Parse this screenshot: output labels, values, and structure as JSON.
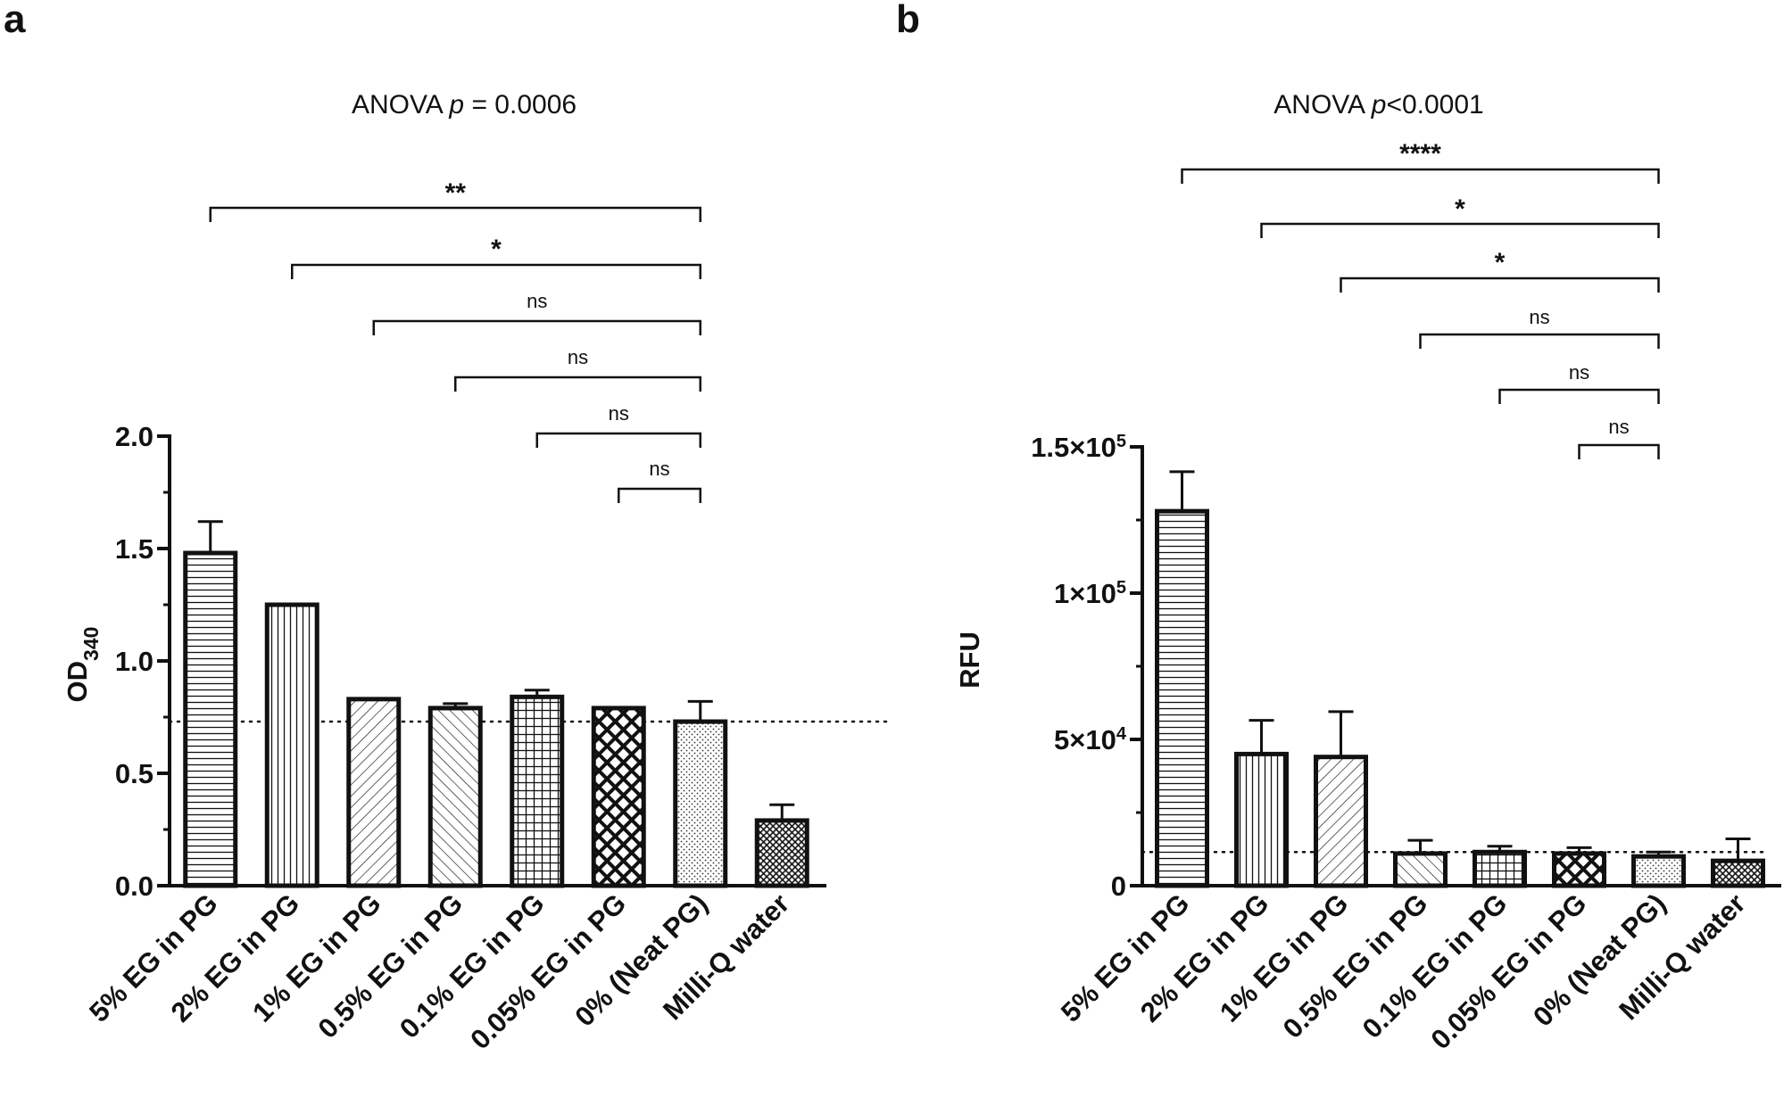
{
  "chart_data": [
    {
      "panel": "a",
      "type": "bar",
      "title": "ANOVA p = 0.0006",
      "title_parts": {
        "prefix": "ANOVA ",
        "p": "p",
        "suffix": " = 0.0006"
      },
      "ylabel": "OD340",
      "ylabel_parts": {
        "main": "OD",
        "sub": "340"
      },
      "xlabel": "",
      "ylim": [
        0,
        2.0
      ],
      "yticks": [
        {
          "value": 0.0,
          "label": "0.0"
        },
        {
          "value": 0.5,
          "label": "0.5"
        },
        {
          "value": 1.0,
          "label": "1.0"
        },
        {
          "value": 1.5,
          "label": "1.5"
        },
        {
          "value": 2.0,
          "label": "2.0"
        }
      ],
      "categories": [
        "5% EG in PG",
        "2% EG in PG",
        "1% EG in PG",
        "0.5% EG in PG",
        "0.1% EG in PG",
        "0.05% EG in PG",
        "0% (Neat PG)",
        "Milli-Q water"
      ],
      "values": [
        1.48,
        1.25,
        0.83,
        0.79,
        0.84,
        0.79,
        0.73,
        0.29
      ],
      "errors": [
        0.14,
        0.0,
        0.0,
        0.02,
        0.03,
        0.0,
        0.09,
        0.07
      ],
      "patterns": [
        "hlines",
        "vlines",
        "diag-right",
        "diag-left",
        "grid",
        "diamond",
        "dots",
        "crosshatch"
      ],
      "reference_line": 0.73,
      "comparisons": [
        {
          "from": "5% EG in PG",
          "to": "0% (Neat PG)",
          "label": "**"
        },
        {
          "from": "2% EG in PG",
          "to": "0% (Neat PG)",
          "label": "*"
        },
        {
          "from": "1% EG in PG",
          "to": "0% (Neat PG)",
          "label": "ns"
        },
        {
          "from": "0.5% EG in PG",
          "to": "0% (Neat PG)",
          "label": "ns"
        },
        {
          "from": "0.1% EG in PG",
          "to": "0% (Neat PG)",
          "label": "ns"
        },
        {
          "from": "0.05% EG in PG",
          "to": "0% (Neat PG)",
          "label": "ns"
        }
      ]
    },
    {
      "panel": "b",
      "type": "bar",
      "title": "ANOVA p<0.0001",
      "title_parts": {
        "prefix": "ANOVA ",
        "p": "p",
        "suffix": "<0.0001"
      },
      "ylabel": "RFU",
      "xlabel": "",
      "ylim": [
        0,
        150000
      ],
      "yticks": [
        {
          "value": 0,
          "label": "0"
        },
        {
          "value": 50000,
          "label": "5×10",
          "exp": "4"
        },
        {
          "value": 100000,
          "label": "1×10",
          "exp": "5"
        },
        {
          "value": 150000,
          "label": "1.5×10",
          "exp": "5"
        }
      ],
      "categories": [
        "5% EG in PG",
        "2% EG in PG",
        "1% EG in PG",
        "0.5% EG in PG",
        "0.1% EG in PG",
        "0.05% EG in PG",
        "0% (Neat PG)",
        "Milli-Q water"
      ],
      "values": [
        128000,
        45000,
        44000,
        11000,
        11500,
        11000,
        10000,
        8500
      ],
      "errors": [
        13500,
        11500,
        15500,
        4500,
        2000,
        2000,
        1500,
        7500
      ],
      "patterns": [
        "hlines",
        "vlines",
        "diag-right",
        "diag-left",
        "grid",
        "diamond",
        "dots",
        "crosshatch"
      ],
      "reference_line": 11500,
      "comparisons": [
        {
          "from": "5% EG in PG",
          "to": "0% (Neat PG)",
          "label": "****"
        },
        {
          "from": "2% EG in PG",
          "to": "0% (Neat PG)",
          "label": "*"
        },
        {
          "from": "1% EG in PG",
          "to": "0% (Neat PG)",
          "label": "*"
        },
        {
          "from": "0.5% EG in PG",
          "to": "0% (Neat PG)",
          "label": "ns"
        },
        {
          "from": "0.1% EG in PG",
          "to": "0% (Neat PG)",
          "label": "ns"
        },
        {
          "from": "0.05% EG in PG",
          "to": "0% (Neat PG)",
          "label": "ns"
        }
      ]
    }
  ],
  "colors": {
    "ink": "#111111",
    "bar_fill": "#ffffff"
  }
}
